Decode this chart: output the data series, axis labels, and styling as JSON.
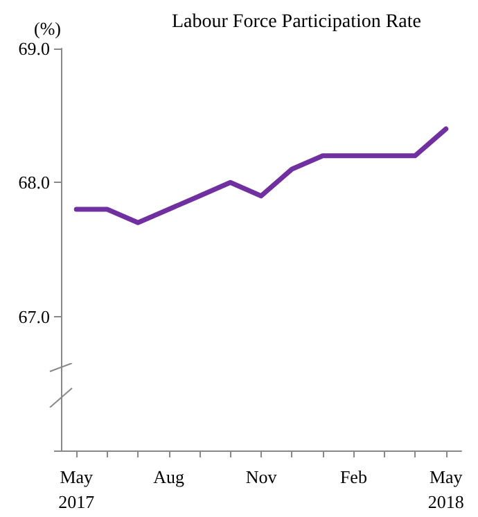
{
  "chart_data": {
    "type": "line",
    "title": "Labour Force Participation Rate",
    "ylabel": "(%)",
    "categories": [
      "May\n2017",
      null,
      null,
      "Aug",
      null,
      null,
      "Nov",
      null,
      null,
      "Feb",
      null,
      null,
      "May\n2018"
    ],
    "series": [
      {
        "color": "#7030a0",
        "values": [
          67.8,
          67.8,
          67.7,
          67.8,
          67.9,
          68.0,
          67.9,
          68.1,
          68.2,
          68.2,
          68.2,
          68.2,
          68.4
        ]
      }
    ],
    "ylim": [
      66.0,
      69.0
    ],
    "yticks": [
      {
        "value": 66,
        "label": null
      },
      {
        "value": 67,
        "label": "67.0"
      },
      {
        "value": 68,
        "label": "68.0"
      },
      {
        "value": 69,
        "label": "69.0"
      }
    ],
    "grid": false,
    "marker": "none",
    "line_style": "solid"
  }
}
